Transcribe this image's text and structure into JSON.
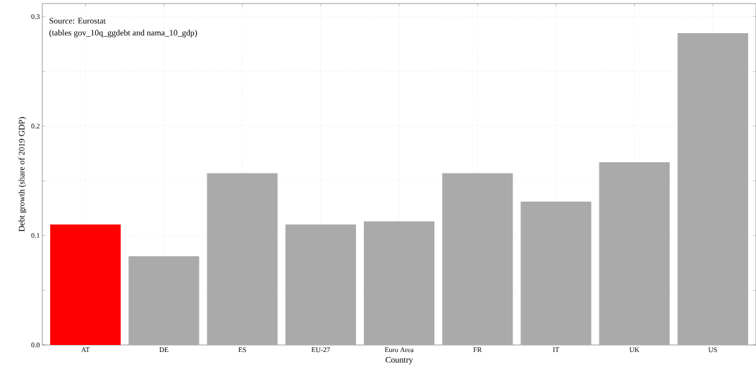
{
  "chart_data": {
    "type": "bar",
    "xlabel": "Country",
    "ylabel": "Debt growth (share of 2019 GDP)",
    "categories": [
      "AT",
      "DE",
      "ES",
      "EU-27",
      "Euro Area",
      "FR",
      "IT",
      "UK",
      "US"
    ],
    "values": [
      0.11,
      0.081,
      0.157,
      0.11,
      0.113,
      0.157,
      0.131,
      0.167,
      0.285
    ],
    "colors": [
      "#ff0000",
      "#aaaaaa",
      "#aaaaaa",
      "#aaaaaa",
      "#aaaaaa",
      "#aaaaaa",
      "#aaaaaa",
      "#aaaaaa",
      "#aaaaaa"
    ],
    "ylim": [
      0,
      0.312
    ],
    "yticks": [
      {
        "value": 0,
        "label": "0.0"
      },
      {
        "value": 0.05,
        "label": null
      },
      0.1,
      {
        "value": 0.15,
        "label": null
      },
      0.2,
      {
        "value": 0.25,
        "label": null
      },
      0.3
    ],
    "grid": true,
    "annotations": [
      "Source: Eurostat",
      "(tables gov_10q_ggdebt and nama_10_gdp)"
    ]
  }
}
